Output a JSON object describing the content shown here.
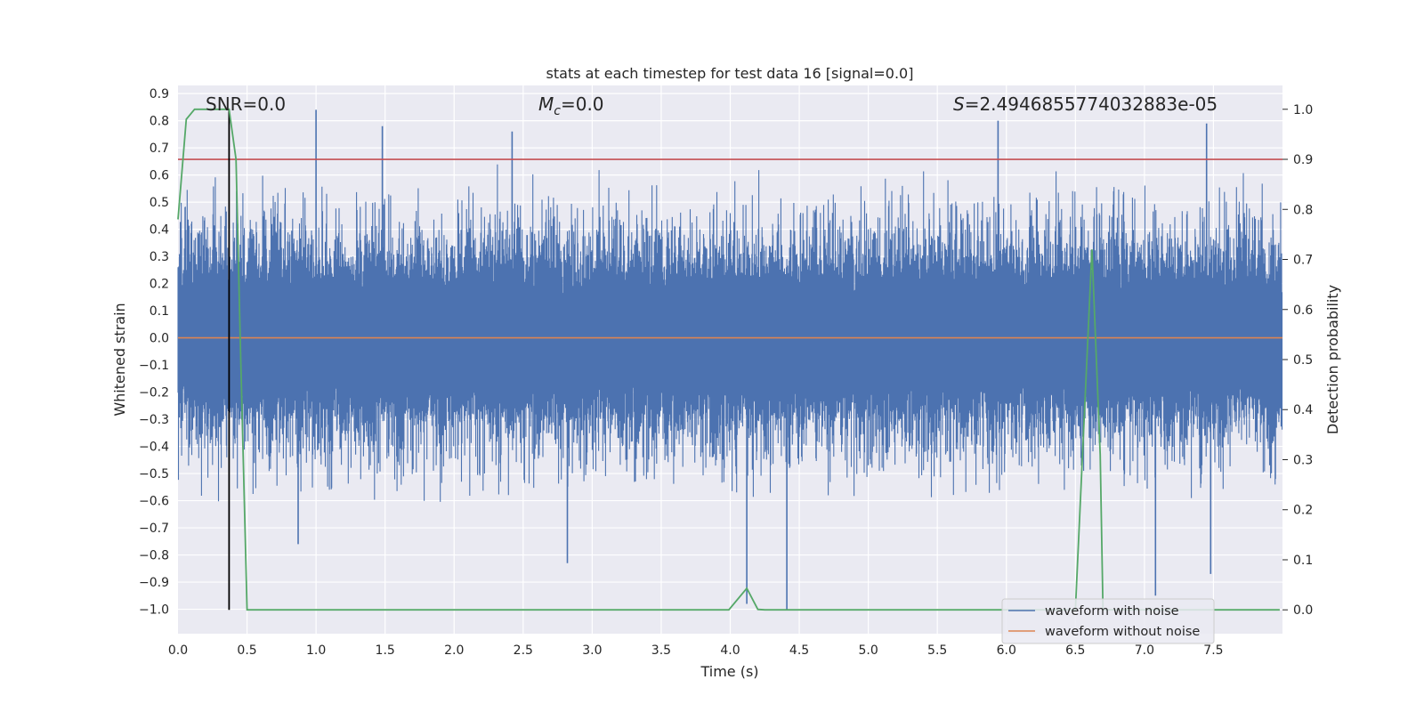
{
  "chart_data": {
    "type": "line",
    "title": "stats at each timestep for test data 16 [signal=0.0]",
    "xlabel": "Time (s)",
    "ylabel": "Whitened strain",
    "y2label": "Detection probability",
    "xlim": [
      0.0,
      8.0
    ],
    "ylim": [
      -1.09,
      0.93
    ],
    "y2lim": [
      -0.0476,
      1.0476
    ],
    "x_ticks": [
      "0.0",
      "0.5",
      "1.0",
      "1.5",
      "2.0",
      "2.5",
      "3.0",
      "3.5",
      "4.0",
      "4.5",
      "5.0",
      "5.5",
      "6.0",
      "6.5",
      "7.0",
      "7.5"
    ],
    "y_ticks": [
      "0.9",
      "0.8",
      "0.7",
      "0.6",
      "0.5",
      "0.4",
      "0.3",
      "0.2",
      "0.1",
      "0.0",
      "−0.1",
      "−0.2",
      "−0.3",
      "−0.4",
      "−0.5",
      "−0.6",
      "−0.7",
      "−0.8",
      "−0.9",
      "−1.0"
    ],
    "y2_ticks": [
      "1.0",
      "0.9",
      "0.8",
      "0.7",
      "0.6",
      "0.5",
      "0.4",
      "0.3",
      "0.2",
      "0.1",
      "0.0"
    ],
    "annotations": {
      "snr": "SNR=0.0",
      "mc_symbol": "M",
      "mc_sub": "c",
      "mc_value": "=0.0",
      "s_symbol": "S",
      "s_value": "=2.4946855774032883e-05"
    },
    "legend": {
      "position": "lower-right",
      "entries": [
        "waveform with noise",
        "waveform without noise"
      ]
    },
    "series": [
      {
        "name": "waveform with noise",
        "color": "#4c72b0",
        "description": "dense noise",
        "envelope_mean": [
          0.45,
          -0.45
        ],
        "notable_peaks": [
          [
            1.0,
            0.84
          ],
          [
            1.48,
            0.78
          ],
          [
            2.42,
            0.76
          ],
          [
            5.94,
            0.8
          ],
          [
            7.45,
            0.79
          ],
          [
            0.87,
            -0.76
          ],
          [
            2.82,
            -0.83
          ],
          [
            4.12,
            -0.98
          ],
          [
            4.41,
            -1.0
          ],
          [
            7.08,
            -0.95
          ],
          [
            7.48,
            -0.87
          ]
        ]
      },
      {
        "name": "waveform without noise",
        "color": "#dd8452",
        "x": [
          0.0,
          8.0
        ],
        "y": [
          0.0,
          0.0
        ]
      },
      {
        "name": "detection probability",
        "axis": "y2",
        "color": "#55a868",
        "x": [
          0.0,
          0.06,
          0.12,
          0.18,
          0.24,
          0.3,
          0.37,
          0.42,
          0.45,
          0.5,
          1.0,
          2.0,
          3.0,
          3.99,
          4.12,
          4.2,
          4.25,
          5.0,
          6.0,
          6.5,
          6.62,
          6.68,
          6.7,
          7.0,
          7.5,
          7.98
        ],
        "y": [
          0.78,
          0.98,
          1.0,
          1.0,
          1.0,
          1.0,
          1.0,
          0.9,
          0.55,
          0.0,
          0.0,
          0.0,
          0.0,
          0.0,
          0.043,
          0.001,
          0.0,
          0.0,
          0.0,
          0.0,
          0.72,
          0.31,
          0.0,
          0.0,
          0.0,
          0.0
        ]
      }
    ],
    "threshold": {
      "axis": "y2",
      "value": 0.9,
      "color": "#c44e52"
    },
    "vertical_marker": {
      "x": 0.37,
      "color": "#000000"
    }
  }
}
